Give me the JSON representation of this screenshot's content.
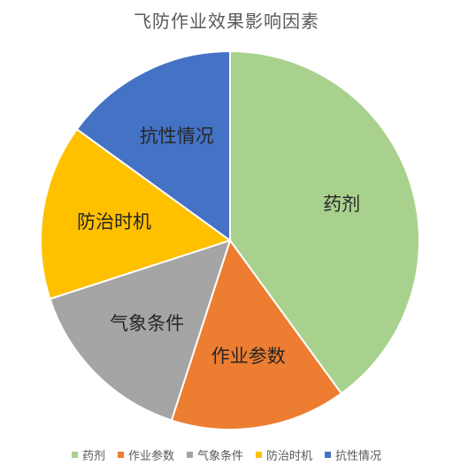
{
  "chart_data": {
    "type": "pie",
    "title": "飞防作业效果影响因素",
    "categories": [
      "药剂",
      "作业参数",
      "气象条件",
      "防治时机",
      "抗性情况"
    ],
    "values": [
      40,
      15,
      15,
      15,
      15
    ],
    "colors": [
      "#A9D18E",
      "#ED7D31",
      "#A5A5A5",
      "#FFC000",
      "#4472C4"
    ],
    "legend": "bottom"
  }
}
